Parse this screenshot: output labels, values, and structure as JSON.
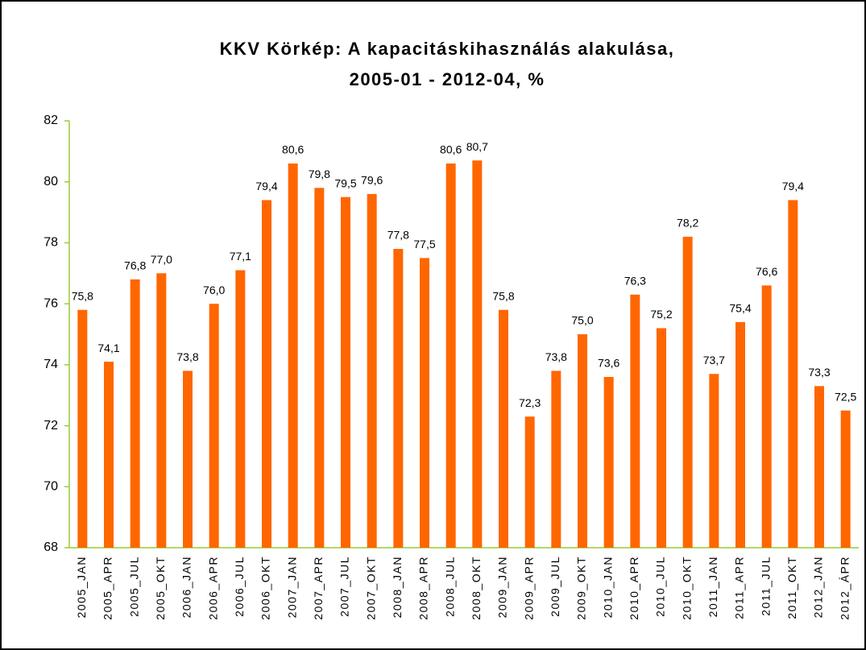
{
  "chart_data": {
    "type": "bar",
    "title": [
      "KKV Körkép: A kapacitáskihasználás alakulása,",
      "2005-01 - 2012-04, %"
    ],
    "categories": [
      "2005_JAN",
      "2005_APR",
      "2005_JUL",
      "2005_OKT",
      "2006_JAN",
      "2006_APR",
      "2006_JUL",
      "2006_OKT",
      "2007_JAN",
      "2007_APR",
      "2007_JUL",
      "2007_OKT",
      "2008_JAN",
      "2008_APR",
      "2008_JUL",
      "2008_OKT",
      "2009_JAN",
      "2009_APR",
      "2009_JUL",
      "2009_OKT",
      "2010_JAN",
      "2010_APR",
      "2010_JUL",
      "2010_OKT",
      "2011_JAN",
      "2011_APR",
      "2011_JUL",
      "2011_OKT",
      "2012_JAN",
      "2012_ÁPR"
    ],
    "values": [
      75.8,
      74.1,
      76.8,
      77.0,
      73.8,
      76.0,
      77.1,
      79.4,
      80.6,
      79.8,
      79.5,
      79.6,
      77.8,
      77.5,
      80.6,
      80.7,
      75.8,
      72.3,
      73.8,
      75.0,
      73.6,
      76.3,
      75.2,
      78.2,
      73.7,
      75.4,
      76.6,
      79.4,
      73.3,
      72.5
    ],
    "value_labels": [
      "75,8",
      "74,1",
      "76,8",
      "77,0",
      "73,8",
      "76,0",
      "77,1",
      "79,4",
      "80,6",
      "79,8",
      "79,5",
      "79,6",
      "77,8",
      "77,5",
      "80,6",
      "80,7",
      "75,8",
      "72,3",
      "73,8",
      "75,0",
      "73,6",
      "76,3",
      "75,2",
      "78,2",
      "73,7",
      "75,4",
      "76,6",
      "79,4",
      "73,3",
      "72,5"
    ],
    "color": "#ff6600",
    "axis_color": "#99cc33",
    "ylim": [
      68,
      82
    ],
    "yticks": [
      68,
      70,
      72,
      74,
      76,
      78,
      80,
      82
    ],
    "grid": false
  }
}
